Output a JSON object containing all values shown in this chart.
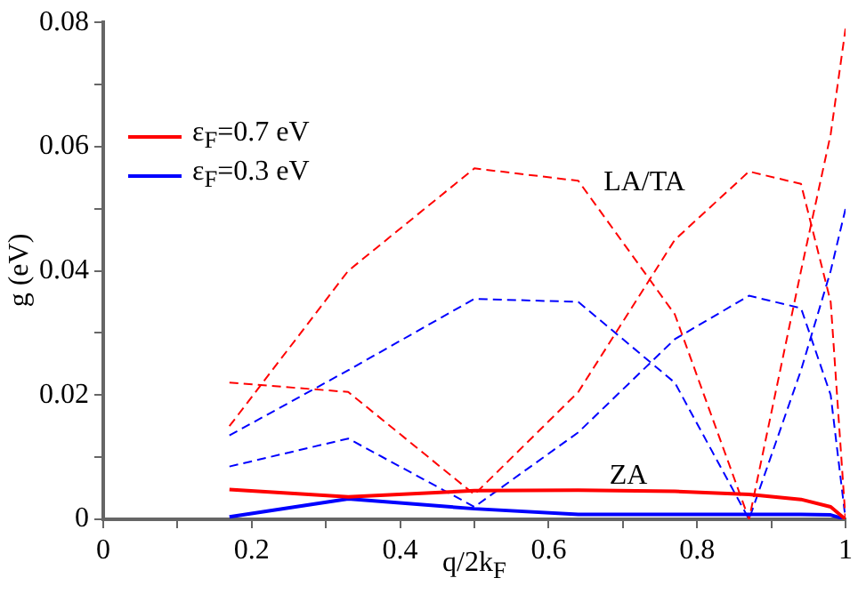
{
  "chart_data": {
    "type": "line",
    "xlabel": "q/2k$_{F}$",
    "ylabel": "g (eV)",
    "x": [
      0.17,
      0.33,
      0.5,
      0.64,
      0.77,
      0.87,
      0.94,
      0.98,
      1.0
    ],
    "series": [
      {
        "name": "ε$_{F}$=0.7 eV",
        "color": "#ff0000",
        "line_style": "solid",
        "values": [
          0.0048,
          0.0036,
          0.0046,
          0.0047,
          0.0045,
          0.004,
          0.0032,
          0.002,
          0
        ]
      },
      {
        "name": "ε$_{F}$=0.3 eV",
        "color": "#0000ff",
        "line_style": "solid",
        "values": [
          0.0004,
          0.0033,
          0.0017,
          0.0008,
          0.0008,
          0.0008,
          0.0008,
          0.0007,
          0
        ]
      },
      {
        "color": "#ff0000",
        "line_style": "dashed",
        "values": [
          0.015,
          0.04,
          0.0565,
          0.0545,
          0.033,
          0,
          0.04,
          0.062,
          0.079
        ]
      },
      {
        "color": "#ff0000",
        "line_style": "dashed",
        "values": [
          0.022,
          0.0205,
          0.004,
          0.0205,
          0.045,
          0.056,
          0.054,
          0.035,
          0
        ]
      },
      {
        "color": "#0000ff",
        "line_style": "dashed",
        "values": [
          0.0135,
          0.024,
          0.0355,
          0.035,
          0.022,
          0,
          0.024,
          0.04,
          0.05
        ]
      },
      {
        "color": "#0000ff",
        "line_style": "dashed",
        "values": [
          0.0085,
          0.013,
          0.002,
          0.014,
          0.029,
          0.036,
          0.034,
          0.02,
          0
        ]
      }
    ],
    "annotations": [
      "LA/TA",
      "ZA"
    ],
    "xlim": [
      0,
      1
    ],
    "ylim": [
      0,
      0.08
    ],
    "xticks": [
      0,
      {
        "value": 0.1,
        "label": null
      },
      0.2,
      {
        "value": 0.3,
        "label": null
      },
      0.4,
      {
        "value": 0.5,
        "label": null
      },
      0.6,
      {
        "value": 0.7,
        "label": null
      },
      0.8,
      {
        "value": 0.9,
        "label": null
      },
      1
    ],
    "yticks": [
      0,
      {
        "value": 0.01,
        "label": null
      },
      0.02,
      {
        "value": 0.03,
        "label": null
      },
      0.04,
      {
        "value": 0.05,
        "label": null
      },
      0.06,
      {
        "value": 0.07,
        "label": null
      },
      0.08
    ],
    "grid": false,
    "legend": "top left",
    "marker": "none"
  }
}
